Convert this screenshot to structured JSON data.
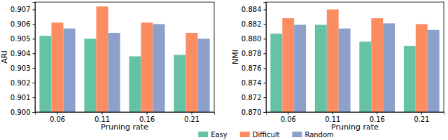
{
  "chart_data": [
    {
      "type": "bar",
      "categories": [
        "0.06",
        "0.11",
        "0.16",
        "0.21"
      ],
      "x_label": "Pruning rate",
      "y_label": "ARI",
      "ylim": [
        0.9,
        0.9075
      ],
      "yticks": [
        {
          "value": 0.9,
          "label": "0.900"
        },
        {
          "value": 0.901,
          "label": "0.901"
        },
        {
          "value": 0.902,
          "label": "0.902"
        },
        {
          "value": 0.903,
          "label": "0.903"
        },
        {
          "value": 0.904,
          "label": "0.904"
        },
        {
          "value": 0.905,
          "label": "0.905"
        },
        {
          "value": 0.906,
          "label": "0.906"
        },
        {
          "value": 0.907,
          "label": "0.907"
        }
      ],
      "legend": "bottom",
      "grid": false,
      "series": [
        {
          "name": "Easy",
          "color": "#66c2a5",
          "values": [
            0.9052,
            0.905,
            0.9038,
            0.9039
          ]
        },
        {
          "name": "Difficult",
          "color": "#fc8d62",
          "values": [
            0.9061,
            0.9072,
            0.9061,
            0.9054
          ]
        },
        {
          "name": "Random",
          "color": "#8da0cb",
          "values": [
            0.9057,
            0.9054,
            0.906,
            0.905
          ]
        }
      ]
    },
    {
      "type": "bar",
      "categories": [
        "0.06",
        "0.11",
        "0.16",
        "0.21"
      ],
      "x_label": "Pruning rate",
      "y_label": "NMI",
      "ylim": [
        0.87,
        0.885
      ],
      "yticks": [
        {
          "value": 0.87,
          "label": "0.870"
        },
        {
          "value": 0.872,
          "label": "0.872"
        },
        {
          "value": 0.874,
          "label": "0.874"
        },
        {
          "value": 0.876,
          "label": "0.876"
        },
        {
          "value": 0.878,
          "label": "0.878"
        },
        {
          "value": 0.88,
          "label": "0.880"
        },
        {
          "value": 0.882,
          "label": "0.882"
        },
        {
          "value": 0.884,
          "label": "0.884"
        }
      ],
      "grid": false,
      "series": [
        {
          "color": "#66c2a5",
          "values": [
            0.8807,
            0.8819,
            0.8796,
            0.879
          ]
        },
        {
          "color": "#fc8d62",
          "values": [
            0.8828,
            0.884,
            0.8828,
            0.882
          ]
        },
        {
          "color": "#8da0cb",
          "values": [
            0.8819,
            0.8814,
            0.8821,
            0.8812
          ]
        }
      ]
    }
  ]
}
